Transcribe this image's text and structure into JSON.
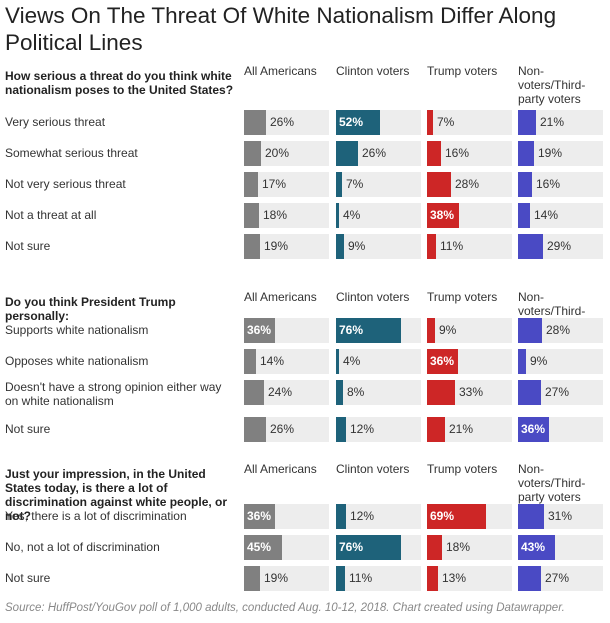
{
  "title": "Views On The Threat Of White Nationalism Differ Along Political Lines",
  "footer": "Source: HuffPost/YouGov poll of 1,000 adults, conducted Aug. 10-12, 2018. Chart created using Datawrapper.",
  "colors": {
    "All Americans": "#808080",
    "Clinton voters": "#1e627a",
    "Trump voters": "#cd2626",
    "Non-voters/Third-party voters": "#4a4ac4"
  },
  "chart_data": [
    {
      "type": "bar",
      "title": "How serious a threat do you think white nationalism poses to the United States?",
      "categories": [
        "Very serious threat",
        "Somewhat serious threat",
        "Not very serious threat",
        "Not a threat at all",
        "Not sure"
      ],
      "series": [
        {
          "name": "All Americans",
          "values": [
            26,
            20,
            17,
            18,
            19
          ]
        },
        {
          "name": "Clinton voters",
          "values": [
            52,
            26,
            7,
            4,
            9
          ]
        },
        {
          "name": "Trump voters",
          "values": [
            7,
            16,
            28,
            38,
            11
          ]
        },
        {
          "name": "Non-voters/Third-party voters",
          "values": [
            21,
            19,
            16,
            14,
            29
          ]
        }
      ],
      "value_suffix": "%",
      "ylim": [
        0,
        100
      ]
    },
    {
      "type": "bar",
      "title": "Do you think President Trump personally:",
      "categories": [
        "Supports white nationalism",
        "Opposes white nationalism",
        "Doesn't have a strong opinion either way on white nationalism",
        "Not sure"
      ],
      "series": [
        {
          "name": "All Americans",
          "values": [
            36,
            14,
            24,
            26
          ]
        },
        {
          "name": "Clinton voters",
          "values": [
            76,
            4,
            8,
            12
          ]
        },
        {
          "name": "Trump voters",
          "values": [
            9,
            36,
            33,
            21
          ]
        },
        {
          "name": "Non-voters/Third-party voters",
          "values": [
            28,
            9,
            27,
            36
          ]
        }
      ],
      "value_suffix": "%",
      "ylim": [
        0,
        100
      ]
    },
    {
      "type": "bar",
      "title": "Just your impression, in the United States today, is there a lot of discrimination against white people, or not?",
      "categories": [
        "Yes, there is a lot of discrimination",
        "No, not a lot of discrimination",
        "Not sure"
      ],
      "series": [
        {
          "name": "All Americans",
          "values": [
            36,
            45,
            19
          ]
        },
        {
          "name": "Clinton voters",
          "values": [
            12,
            76,
            11
          ]
        },
        {
          "name": "Trump voters",
          "values": [
            69,
            18,
            13
          ]
        },
        {
          "name": "Non-voters/Third-party voters",
          "values": [
            31,
            43,
            27
          ]
        }
      ],
      "value_suffix": "%",
      "ylim": [
        0,
        100
      ]
    }
  ]
}
